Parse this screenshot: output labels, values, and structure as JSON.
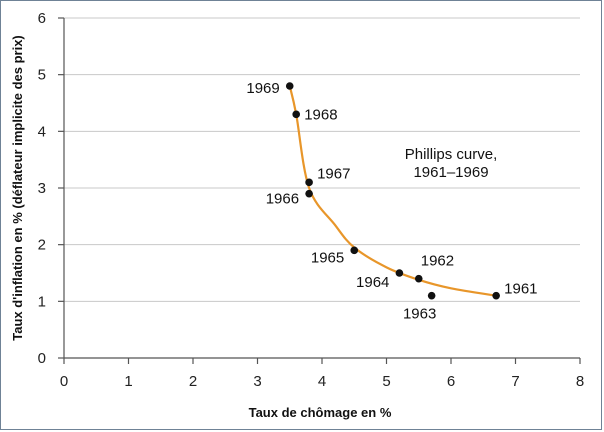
{
  "chart_data": {
    "type": "scatter",
    "title": "",
    "xlabel": "Taux de chômage en %",
    "ylabel": "Taux d'inflation en % (déflateur implicite des prix)",
    "xlim": [
      0,
      8
    ],
    "ylim": [
      0,
      6
    ],
    "x_ticks": [
      "0",
      "1",
      "2",
      "3",
      "4",
      "5",
      "6",
      "7",
      "8"
    ],
    "y_ticks": [
      "0",
      "1",
      "2",
      "3",
      "4",
      "5",
      "6"
    ],
    "grid": "horizontal",
    "points": [
      {
        "label": "1961",
        "x": 6.7,
        "y": 1.1
      },
      {
        "label": "1962",
        "x": 5.5,
        "y": 1.4
      },
      {
        "label": "1963",
        "x": 5.7,
        "y": 1.1
      },
      {
        "label": "1964",
        "x": 5.2,
        "y": 1.5
      },
      {
        "label": "1965",
        "x": 4.5,
        "y": 1.9
      },
      {
        "label": "1966",
        "x": 3.8,
        "y": 2.9
      },
      {
        "label": "1967",
        "x": 3.8,
        "y": 3.1
      },
      {
        "label": "1968",
        "x": 3.6,
        "y": 4.3
      },
      {
        "label": "1969",
        "x": 3.5,
        "y": 4.8
      }
    ],
    "curve": [
      [
        3.5,
        4.8
      ],
      [
        3.6,
        4.3
      ],
      [
        3.8,
        3.0
      ],
      [
        4.2,
        2.35
      ],
      [
        4.5,
        1.95
      ],
      [
        5.0,
        1.6
      ],
      [
        5.5,
        1.38
      ],
      [
        6.0,
        1.23
      ],
      [
        6.7,
        1.1
      ]
    ],
    "annotation_line1": "Phillips curve,",
    "annotation_line2": "1961–1969",
    "colors": {
      "curve": "#e8962a",
      "point": "#111111",
      "grid": "#c8c8c8",
      "axis": "#555555"
    }
  }
}
